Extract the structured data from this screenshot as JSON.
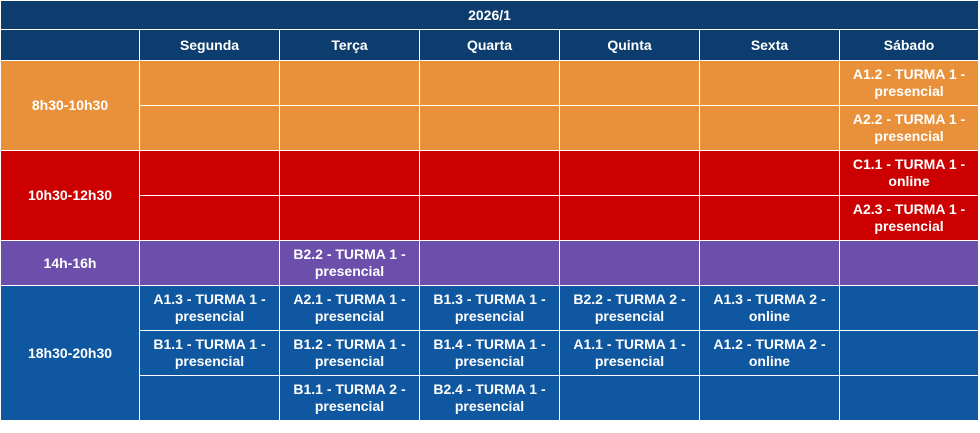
{
  "title": "2026/1",
  "days": [
    "Segunda",
    "Terça",
    "Quarta",
    "Quinta",
    "Sexta",
    "Sábado"
  ],
  "colors": {
    "header": "#0d3d6e",
    "morning": "#e9913a",
    "midday": "#cc0000",
    "afternoon": "#6b4fab",
    "evening": "#0f57a0"
  },
  "slots": [
    {
      "time": "8h30-10h30",
      "rows": [
        [
          "",
          "",
          "",
          "",
          "",
          "A1.2 - TURMA 1 - presencial"
        ],
        [
          "",
          "",
          "",
          "",
          "",
          "A2.2 - TURMA 1 - presencial"
        ]
      ]
    },
    {
      "time": "10h30-12h30",
      "rows": [
        [
          "",
          "",
          "",
          "",
          "",
          "C1.1 - TURMA 1 - online"
        ],
        [
          "",
          "",
          "",
          "",
          "",
          "A2.3 - TURMA 1 - presencial"
        ]
      ]
    },
    {
      "time": "14h-16h",
      "rows": [
        [
          "",
          "B2.2 - TURMA 1 - presencial",
          "",
          "",
          "",
          ""
        ]
      ]
    },
    {
      "time": "18h30-20h30",
      "rows": [
        [
          "A1.3 - TURMA 1 - presencial",
          "A2.1 - TURMA 1 - presencial",
          "B1.3 - TURMA 1 - presencial",
          "B2.2 - TURMA 2 - presencial",
          "A1.3 - TURMA 2 - online",
          ""
        ],
        [
          "B1.1 - TURMA 1 - presencial",
          "B1.2 - TURMA 1 - presencial",
          "B1.4 - TURMA 1 - presencial",
          "A1.1 - TURMA 1 - presencial",
          "A1.2 - TURMA 2 - online",
          ""
        ],
        [
          "",
          "B1.1 - TURMA 2 - presencial",
          "B2.4 - TURMA 1 - presencial",
          "",
          "",
          ""
        ]
      ]
    }
  ]
}
